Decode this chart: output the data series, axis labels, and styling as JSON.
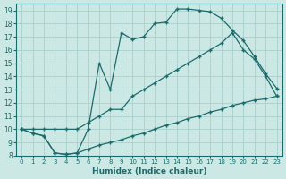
{
  "xlabel": "Humidex (Indice chaleur)",
  "bg_color": "#cce8e5",
  "grid_color": "#aacfcc",
  "line_color": "#1a6b6b",
  "xlim": [
    -0.5,
    23.5
  ],
  "ylim": [
    8,
    19.5
  ],
  "xticks": [
    0,
    1,
    2,
    3,
    4,
    5,
    6,
    7,
    8,
    9,
    10,
    11,
    12,
    13,
    14,
    15,
    16,
    17,
    18,
    19,
    20,
    21,
    22,
    23
  ],
  "yticks": [
    8,
    9,
    10,
    11,
    12,
    13,
    14,
    15,
    16,
    17,
    18,
    19
  ],
  "line1_x": [
    0,
    1,
    2,
    3,
    4,
    5,
    6,
    7,
    8,
    9,
    10,
    11,
    12,
    13,
    14,
    15,
    16,
    17,
    18,
    19,
    20,
    21,
    22,
    23
  ],
  "line1_y": [
    10.0,
    9.7,
    9.5,
    8.2,
    8.1,
    8.2,
    10.0,
    15.0,
    13.0,
    17.3,
    16.8,
    17.0,
    18.0,
    18.1,
    19.1,
    19.1,
    19.0,
    18.9,
    18.4,
    17.5,
    16.7,
    15.5,
    14.2,
    13.1
  ],
  "line2_x": [
    0,
    1,
    2,
    3,
    4,
    5,
    6,
    7,
    8,
    9,
    10,
    11,
    12,
    13,
    14,
    15,
    16,
    17,
    18,
    19,
    20,
    21,
    22,
    23
  ],
  "line2_y": [
    10.0,
    10.0,
    10.0,
    10.0,
    10.0,
    10.0,
    10.5,
    11.0,
    11.5,
    11.5,
    12.5,
    13.0,
    13.5,
    14.0,
    14.5,
    15.0,
    15.5,
    16.0,
    16.5,
    17.3,
    16.0,
    15.3,
    14.0,
    12.5
  ],
  "line3_x": [
    0,
    1,
    2,
    3,
    4,
    5,
    6,
    7,
    8,
    9,
    10,
    11,
    12,
    13,
    14,
    15,
    16,
    17,
    18,
    19,
    20,
    21,
    22,
    23
  ],
  "line3_y": [
    10.0,
    9.7,
    9.5,
    8.2,
    8.1,
    8.2,
    8.5,
    8.8,
    9.0,
    9.2,
    9.5,
    9.7,
    10.0,
    10.3,
    10.5,
    10.8,
    11.0,
    11.3,
    11.5,
    11.8,
    12.0,
    12.2,
    12.3,
    12.5
  ]
}
